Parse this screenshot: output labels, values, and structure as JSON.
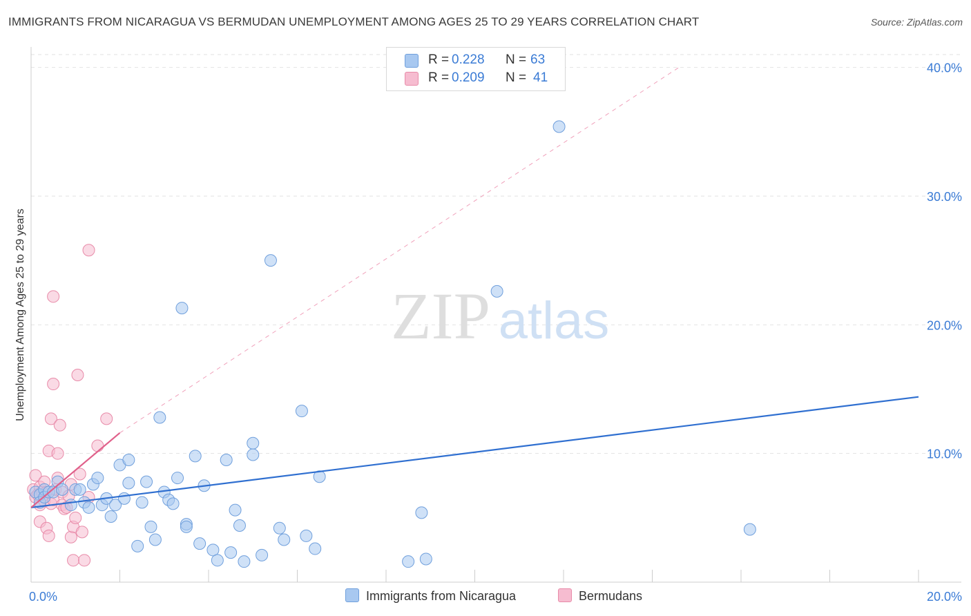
{
  "title": "IMMIGRANTS FROM NICARAGUA VS BERMUDAN UNEMPLOYMENT AMONG AGES 25 TO 29 YEARS CORRELATION CHART",
  "source": "Source: ZipAtlas.com",
  "watermark": {
    "zip": "ZIP",
    "atlas": "atlas"
  },
  "legend": {
    "r_label": "R =",
    "n_label": "N =",
    "series1": {
      "r": "0.228",
      "n": "63"
    },
    "series2": {
      "r": "0.209",
      "n": "41"
    }
  },
  "colors": {
    "blue_fill": "#a8c8f0",
    "blue_stroke": "#6f9fdc",
    "blue_line": "#2f6fd0",
    "pink_fill": "#f6bcd0",
    "pink_stroke": "#e88aa8",
    "pink_line": "#e0608a",
    "axis_text": "#3a7bd5"
  },
  "chart_data": {
    "type": "scatter",
    "ylabel": "Unemployment Among Ages 25 to 29 years",
    "xlabel": "",
    "x_tick_labels": [
      "0.0%",
      "20.0%"
    ],
    "y_tick_labels": [
      "10.0%",
      "20.0%",
      "30.0%",
      "40.0%"
    ],
    "xlim": [
      0,
      20
    ],
    "ylim": [
      0,
      41
    ],
    "series": [
      {
        "name": "Immigrants from Nicaragua",
        "trendline": {
          "x": [
            0,
            20
          ],
          "y": [
            5.8,
            14.4
          ]
        },
        "points": [
          [
            0.1,
            7.0
          ],
          [
            0.2,
            6.8
          ],
          [
            0.2,
            6.2
          ],
          [
            0.3,
            7.2
          ],
          [
            0.3,
            6.6
          ],
          [
            0.4,
            7.0
          ],
          [
            0.5,
            7.0
          ],
          [
            0.6,
            7.8
          ],
          [
            0.7,
            7.2
          ],
          [
            0.9,
            6.0
          ],
          [
            1.0,
            7.2
          ],
          [
            1.1,
            7.2
          ],
          [
            1.2,
            6.2
          ],
          [
            1.3,
            5.8
          ],
          [
            1.4,
            7.6
          ],
          [
            1.5,
            8.1
          ],
          [
            1.6,
            6.0
          ],
          [
            1.7,
            6.5
          ],
          [
            1.8,
            5.1
          ],
          [
            1.9,
            6.0
          ],
          [
            2.0,
            9.1
          ],
          [
            2.1,
            6.5
          ],
          [
            2.2,
            9.5
          ],
          [
            2.2,
            7.7
          ],
          [
            2.4,
            2.8
          ],
          [
            2.5,
            6.2
          ],
          [
            2.6,
            7.8
          ],
          [
            2.7,
            4.3
          ],
          [
            2.8,
            3.3
          ],
          [
            2.9,
            12.8
          ],
          [
            3.0,
            7.0
          ],
          [
            3.1,
            6.4
          ],
          [
            3.2,
            6.1
          ],
          [
            3.3,
            8.1
          ],
          [
            3.4,
            21.3
          ],
          [
            3.5,
            4.5
          ],
          [
            3.5,
            4.3
          ],
          [
            3.7,
            9.8
          ],
          [
            3.8,
            3.0
          ],
          [
            3.9,
            7.5
          ],
          [
            4.1,
            2.5
          ],
          [
            4.2,
            1.7
          ],
          [
            4.4,
            9.5
          ],
          [
            4.5,
            2.3
          ],
          [
            4.6,
            5.6
          ],
          [
            4.7,
            4.4
          ],
          [
            4.8,
            1.6
          ],
          [
            5.0,
            10.8
          ],
          [
            5.0,
            9.9
          ],
          [
            5.2,
            2.1
          ],
          [
            5.4,
            25.0
          ],
          [
            5.6,
            4.2
          ],
          [
            5.7,
            3.3
          ],
          [
            6.1,
            13.3
          ],
          [
            6.2,
            3.6
          ],
          [
            6.4,
            2.6
          ],
          [
            6.5,
            8.2
          ],
          [
            8.5,
            1.6
          ],
          [
            8.8,
            5.4
          ],
          [
            8.9,
            1.8
          ],
          [
            10.5,
            22.6
          ],
          [
            11.9,
            35.4
          ],
          [
            16.2,
            4.1
          ]
        ]
      },
      {
        "name": "Bermudans",
        "trendline": {
          "x": [
            0,
            2.0
          ],
          "y": [
            5.8,
            11.6
          ],
          "dashed_extension": {
            "x": [
              2.0,
              14.6
            ],
            "y": [
              11.6,
              40.0
            ]
          }
        },
        "points": [
          [
            0.05,
            7.2
          ],
          [
            0.1,
            6.6
          ],
          [
            0.1,
            8.3
          ],
          [
            0.15,
            6.8
          ],
          [
            0.2,
            7.4
          ],
          [
            0.2,
            6.0
          ],
          [
            0.2,
            4.7
          ],
          [
            0.25,
            7.0
          ],
          [
            0.3,
            7.8
          ],
          [
            0.3,
            6.3
          ],
          [
            0.35,
            7.0
          ],
          [
            0.35,
            4.2
          ],
          [
            0.4,
            3.6
          ],
          [
            0.4,
            10.2
          ],
          [
            0.45,
            12.7
          ],
          [
            0.45,
            6.1
          ],
          [
            0.5,
            15.4
          ],
          [
            0.5,
            22.2
          ],
          [
            0.5,
            6.4
          ],
          [
            0.55,
            7.2
          ],
          [
            0.6,
            8.1
          ],
          [
            0.6,
            10.0
          ],
          [
            0.65,
            12.2
          ],
          [
            0.7,
            6.0
          ],
          [
            0.7,
            7.0
          ],
          [
            0.75,
            5.7
          ],
          [
            0.8,
            5.8
          ],
          [
            0.85,
            6.7
          ],
          [
            0.9,
            7.6
          ],
          [
            0.9,
            3.5
          ],
          [
            0.95,
            1.7
          ],
          [
            0.95,
            4.3
          ],
          [
            1.0,
            5.0
          ],
          [
            1.05,
            16.1
          ],
          [
            1.1,
            8.4
          ],
          [
            1.15,
            3.9
          ],
          [
            1.2,
            1.7
          ],
          [
            1.3,
            25.8
          ],
          [
            1.5,
            10.6
          ],
          [
            1.7,
            12.7
          ],
          [
            1.3,
            6.6
          ]
        ]
      }
    ]
  }
}
